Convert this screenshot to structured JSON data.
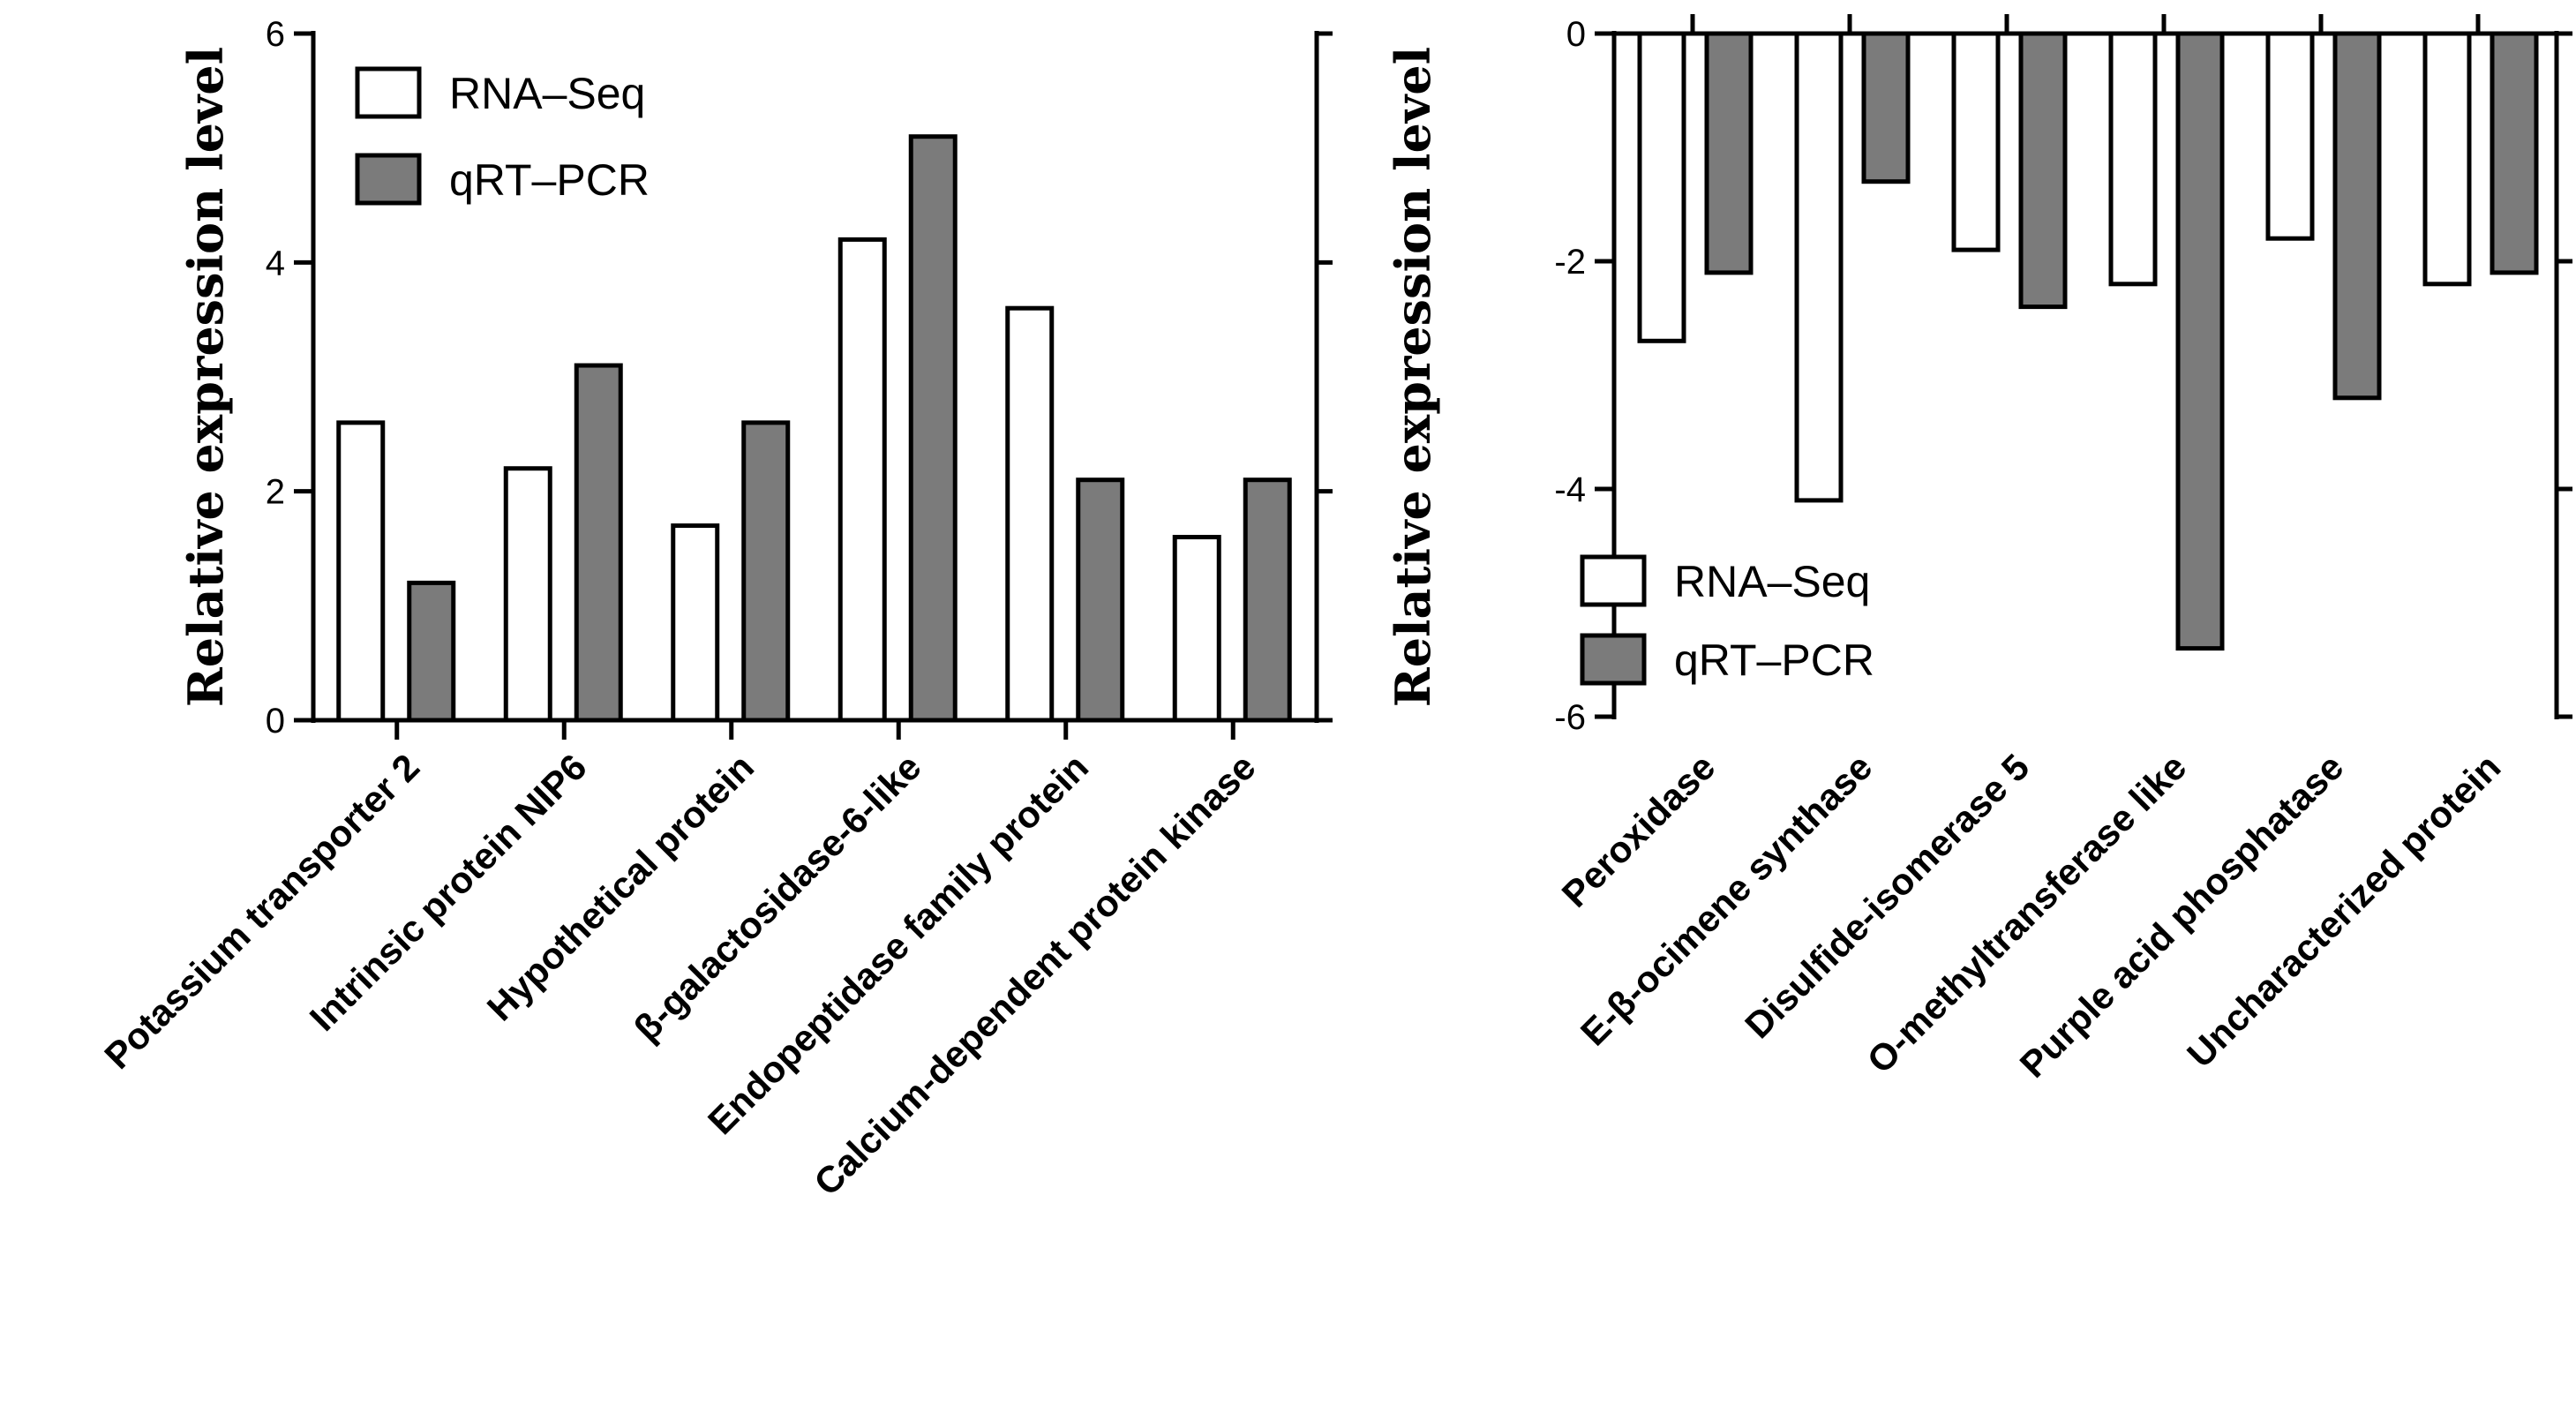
{
  "chart_data": [
    {
      "type": "bar",
      "title": "",
      "xlabel": "",
      "ylabel": "Relative expression level",
      "ylim": [
        0,
        6
      ],
      "yticks": [
        "0",
        "2",
        "4",
        "6"
      ],
      "legend_position": "top-left",
      "categories": [
        "Potassium transporter 2",
        "Intrinsic protein NIP6",
        "Hypothetical protein",
        "β-galactosidase-6-like",
        "Endopeptidase family protein",
        "Calcium-dependent protein kinase"
      ],
      "series": [
        {
          "name": "RNA–Seq",
          "color": "#ffffff",
          "values": [
            2.6,
            2.2,
            1.7,
            4.2,
            3.6,
            1.6
          ]
        },
        {
          "name": "qRT–PCR",
          "color": "#7b7b7b",
          "values": [
            1.2,
            3.1,
            2.6,
            5.1,
            2.1,
            2.1
          ]
        }
      ]
    },
    {
      "type": "bar",
      "title": "",
      "xlabel": "",
      "ylabel": "Relative expression level",
      "ylim": [
        -6,
        0
      ],
      "yticks": [
        "0",
        "-2",
        "-4",
        "-6"
      ],
      "legend_position": "bottom-left",
      "categories": [
        "Peroxidase",
        "E-β-ocimene synthase",
        "Disulfide-isomerase 5",
        "O-methyltransferase like",
        "Purple acid phosphatase",
        "Uncharacterized protein"
      ],
      "series": [
        {
          "name": "RNA–Seq",
          "color": "#ffffff",
          "values": [
            -2.7,
            -4.1,
            -1.9,
            -2.2,
            -1.8,
            -2.2
          ]
        },
        {
          "name": "qRT–PCR",
          "color": "#7b7b7b",
          "values": [
            -2.1,
            -1.3,
            -2.4,
            -5.4,
            -3.2,
            -2.1
          ]
        }
      ]
    }
  ]
}
